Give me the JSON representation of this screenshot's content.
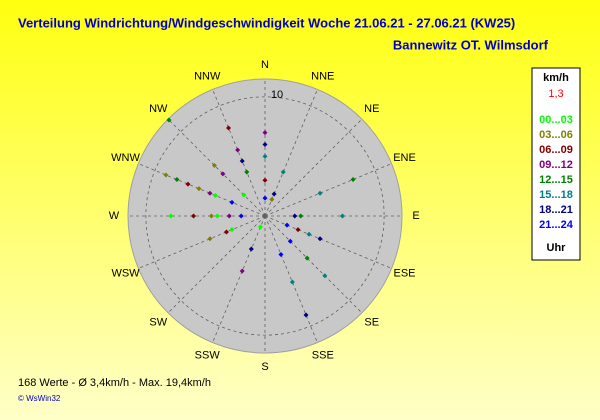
{
  "chart_data": {
    "type": "polar",
    "title": "Verteilung Windrichtung/Windgeschwindigkeit  Woche 21.06.21 - 27.06.21 (KW25)",
    "subtitle": "Bannewitz OT. Wilmsdorf",
    "direction_labels": [
      "N",
      "NNE",
      "NE",
      "ENE",
      "E",
      "ESE",
      "SE",
      "SSE",
      "S",
      "SSW",
      "SW",
      "WSW",
      "W",
      "WNW",
      "NW",
      "NNW"
    ],
    "rlim": [
      0,
      11.5
    ],
    "rticks": [
      10
    ],
    "legend_title": "km/h",
    "legend_scale": "1,3",
    "legend_unit": "Uhr",
    "footer": "168 Werte   -   Ø 3,4km/h   -   Max. 19,4km/h",
    "credit": "© WsWin32",
    "series": [
      {
        "name": "00...03",
        "color": "#00ff00",
        "directions": [
          270,
          270,
          247.5,
          292.5,
          315,
          202.5
        ],
        "values": [
          7.9,
          4,
          3,
          4.5,
          2.5,
          1
        ]
      },
      {
        "name": "03...06",
        "color": "#808000",
        "directions": [
          292.5,
          270,
          315,
          292.5,
          247.5,
          22.5
        ],
        "values": [
          9,
          4.5,
          6,
          6,
          5,
          1.5
        ]
      },
      {
        "name": "06...09",
        "color": "#800000",
        "directions": [
          337.5,
          270,
          292.5,
          247.5,
          0,
          112.5
        ],
        "values": [
          8,
          6,
          7,
          3.5,
          3,
          3
        ]
      },
      {
        "name": "09...12",
        "color": "#800080",
        "directions": [
          0,
          337.5,
          315,
          292.5,
          270,
          202.5
        ],
        "values": [
          7,
          6,
          5,
          5,
          3,
          5
        ]
      },
      {
        "name": "12...15",
        "color": "#008000",
        "directions": [
          315,
          292.5,
          337.5,
          67.5,
          90,
          135
        ],
        "values": [
          11.4,
          8,
          4,
          8,
          3,
          5
        ]
      },
      {
        "name": "15...18",
        "color": "#008080",
        "directions": [
          67.5,
          90,
          112.5,
          135,
          157.5,
          22.5,
          0
        ],
        "values": [
          5,
          6.5,
          4,
          7.1,
          6,
          4,
          5
        ]
      },
      {
        "name": "18...21",
        "color": "#000080",
        "directions": [
          0,
          22.5,
          90,
          112.5,
          157.5,
          202.5,
          337.5
        ],
        "values": [
          6,
          2,
          2.5,
          5,
          9,
          3,
          5
        ]
      },
      {
        "name": "21...24",
        "color": "#0000ff",
        "directions": [
          270,
          292.5,
          0,
          112.5,
          135,
          157.5
        ],
        "values": [
          2,
          3,
          1.5,
          2,
          3,
          3.5
        ]
      }
    ]
  }
}
